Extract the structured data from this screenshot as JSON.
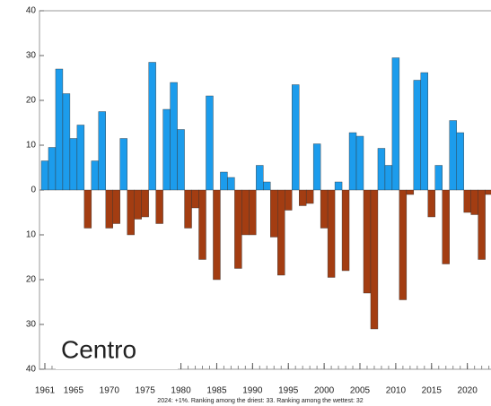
{
  "chart_data": {
    "type": "bar",
    "region": "Centro",
    "footnote": "2024: +1%. Ranking among the driest: 33. Ranking among the wettest: 32",
    "x": [
      1961,
      1962,
      1963,
      1964,
      1965,
      1966,
      1967,
      1968,
      1969,
      1970,
      1971,
      1972,
      1973,
      1974,
      1975,
      1976,
      1977,
      1978,
      1979,
      1980,
      1981,
      1982,
      1983,
      1984,
      1985,
      1986,
      1987,
      1988,
      1989,
      1990,
      1991,
      1992,
      1993,
      1994,
      1995,
      1996,
      1997,
      1998,
      1999,
      2000,
      2001,
      2002,
      2003,
      2004,
      2005,
      2006,
      2007,
      2008,
      2009,
      2010,
      2011,
      2012,
      2013,
      2014,
      2015,
      2016,
      2017,
      2018,
      2019,
      2020,
      2021,
      2022,
      2023
    ],
    "values": [
      6.5,
      9.5,
      27,
      21.5,
      11.5,
      14.5,
      -8.5,
      6.5,
      17.5,
      -8.5,
      -7.5,
      11.5,
      -10,
      -6.5,
      -6,
      28.5,
      -7.5,
      18,
      24,
      13.5,
      -8.5,
      -4,
      -15.5,
      21,
      -20,
      4,
      2.8,
      -17.5,
      -10,
      -10,
      5.5,
      1.8,
      -10.5,
      -19,
      -4.5,
      23.5,
      -3.5,
      -3,
      10.3,
      -8.5,
      -19.5,
      1.8,
      -18,
      12.8,
      12,
      -23,
      -31,
      9.3,
      5.5,
      29.5,
      -24.5,
      -1,
      24.5,
      26.2,
      -6,
      5.5,
      -16.5,
      15.5,
      12.8,
      -5,
      -5.5,
      -15.5,
      -1
    ],
    "color_positive": "#1c9cec",
    "color_negative": "#a33d12",
    "xlim": [
      1960.25,
      2023.3
    ],
    "xticks": [
      1961,
      1965,
      1970,
      1975,
      1980,
      1985,
      1990,
      1995,
      2000,
      2005,
      2010,
      2015,
      2020
    ],
    "ylim": [
      -40,
      40
    ],
    "yticks": [
      {
        "value": 40,
        "label": "40"
      },
      30,
      20,
      10,
      0,
      {
        "value": -10,
        "label": "10"
      },
      {
        "value": -20,
        "label": "20"
      },
      {
        "value": -30,
        "label": "30"
      },
      {
        "value": -40,
        "label": "40"
      }
    ]
  }
}
